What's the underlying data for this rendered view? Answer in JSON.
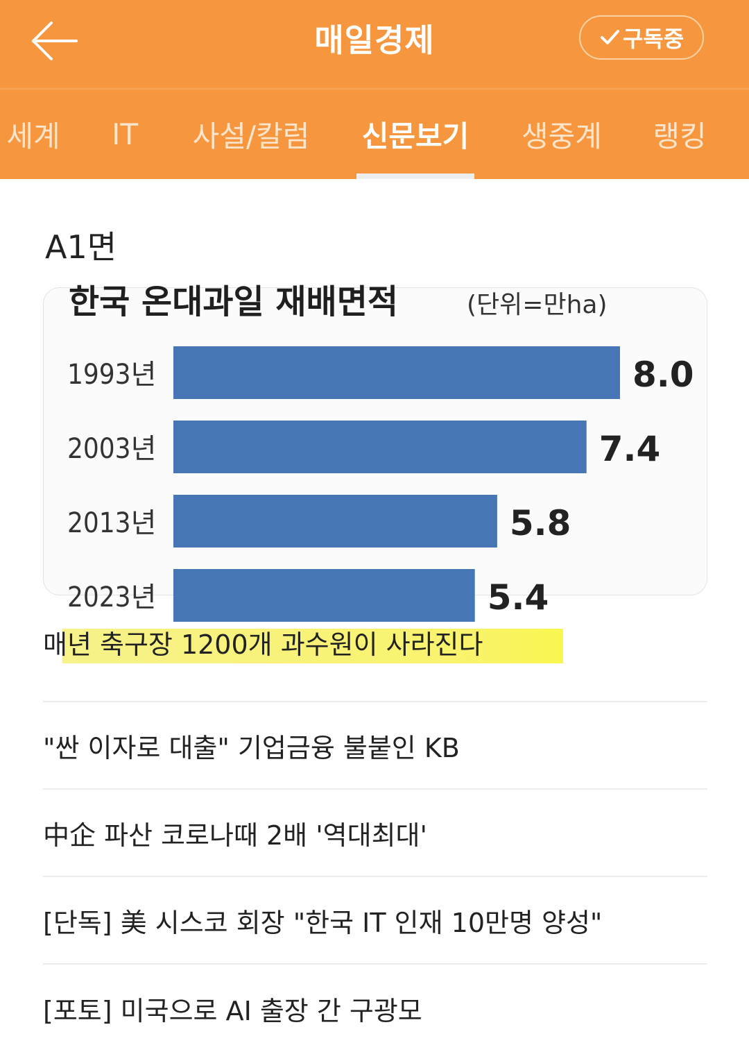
{
  "header": {
    "title": "매일경제",
    "subscribe_label": "구독중",
    "accent_color": "#f6973f",
    "back_icon": "arrow-left-icon",
    "subscribe_icon": "check-icon"
  },
  "tabs": [
    {
      "label": "세계",
      "active": false
    },
    {
      "label": "IT",
      "active": false
    },
    {
      "label": "사설/칼럼",
      "active": false
    },
    {
      "label": "신문보기",
      "active": true
    },
    {
      "label": "생중계",
      "active": false
    },
    {
      "label": "랭킹",
      "active": false
    }
  ],
  "page_label": "A1면",
  "chart_data": {
    "type": "bar",
    "orientation": "horizontal",
    "title": "한국 온대과일 재배면적",
    "unit_label": "(단위=만ha)",
    "categories": [
      "1993년",
      "2003년",
      "2013년",
      "2023년"
    ],
    "values": [
      8.0,
      7.4,
      5.8,
      5.4
    ],
    "value_labels": [
      "8.0",
      "7.4",
      "5.8",
      "5.4"
    ],
    "bar_color": "#4677b4",
    "xlim": [
      0,
      8.0
    ]
  },
  "headlines": [
    {
      "text": "매년 축구장 1200개 과수원이 사라진다",
      "highlighted": true
    },
    {
      "text": "\"싼 이자로 대출\" 기업금융 불붙인 KB",
      "highlighted": false
    },
    {
      "text": "中企 파산 코로나때 2배 '역대최대'",
      "highlighted": false
    },
    {
      "text": "[단독] 美 시스코 회장 \"한국 IT 인재 10만명 양성\"",
      "highlighted": false
    },
    {
      "text": "[포토] 미국으로 AI 출장 간 구광모",
      "highlighted": false
    }
  ]
}
